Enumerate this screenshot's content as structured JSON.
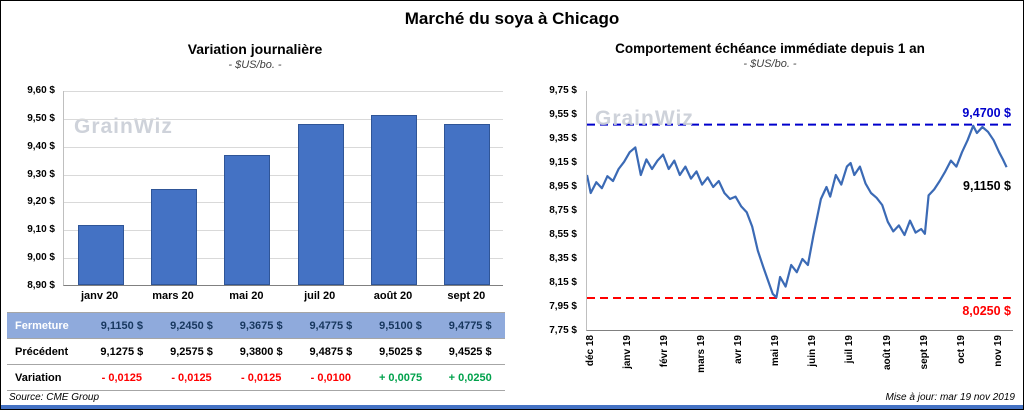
{
  "page": {
    "title": "Marché du soya à Chicago",
    "watermark": "GrainWiz",
    "footer_source": "Source: CME Group",
    "footer_updated": "Mise à jour: mar 19 nov 2019"
  },
  "colors": {
    "bar": "#4472C4",
    "line": "#3B6AB5",
    "high_line": "#0000CC",
    "low_line": "#FF0000",
    "negative": "#FF0000",
    "positive": "#00A14B",
    "fermeture_row_bg": "#8FAADC",
    "accent_bar": "#4472C4"
  },
  "chart_data": [
    {
      "type": "bar",
      "title": "Variation  journalière",
      "subtitle": "- $US/bo. -",
      "categories": [
        "janv 20",
        "mars 20",
        "mai 20",
        "juil 20",
        "août 20",
        "sept 20"
      ],
      "values": [
        9.115,
        9.245,
        9.3675,
        9.4775,
        9.51,
        9.4775
      ],
      "ylim": [
        8.9,
        9.6
      ],
      "ytick_labels": [
        "9,60 $",
        "9,50 $",
        "9,40 $",
        "9,30 $",
        "9,20 $",
        "9,10 $",
        "9,00 $",
        "8,90 $"
      ],
      "grid": true,
      "legend": false
    },
    {
      "type": "line",
      "title": "Comportement  échéance  immédiate  depuis 1 an",
      "subtitle": "- $US/bo. -",
      "x_labels": [
        "déc 18",
        "janv 19",
        "févr 19",
        "mars 19",
        "avr 19",
        "mai 19",
        "juin 19",
        "juil 19",
        "août 19",
        "sept 19",
        "oct 19",
        "nov 19"
      ],
      "ylim": [
        7.75,
        9.75
      ],
      "ytick_labels": [
        "9,75 $",
        "9,55 $",
        "9,35 $",
        "9,15 $",
        "8,95 $",
        "8,75 $",
        "8,55 $",
        "8,35 $",
        "8,15 $",
        "7,95 $",
        "7,75 $"
      ],
      "grid": false,
      "legend": false,
      "high_annotation": {
        "value": 9.47,
        "label": "9,4700 $"
      },
      "last_annotation": {
        "value": 9.115,
        "label": "9,1150 $"
      },
      "low_annotation": {
        "value": 8.025,
        "label": "8,0250 $"
      },
      "points": [
        [
          0.0,
          9.05
        ],
        [
          0.1,
          8.9
        ],
        [
          0.25,
          8.99
        ],
        [
          0.4,
          8.94
        ],
        [
          0.55,
          9.04
        ],
        [
          0.7,
          9.0
        ],
        [
          0.85,
          9.1
        ],
        [
          1.0,
          9.16
        ],
        [
          1.15,
          9.24
        ],
        [
          1.3,
          9.28
        ],
        [
          1.45,
          9.05
        ],
        [
          1.6,
          9.18
        ],
        [
          1.75,
          9.1
        ],
        [
          1.9,
          9.17
        ],
        [
          2.05,
          9.22
        ],
        [
          2.2,
          9.1
        ],
        [
          2.35,
          9.17
        ],
        [
          2.5,
          9.05
        ],
        [
          2.65,
          9.12
        ],
        [
          2.8,
          9.02
        ],
        [
          2.95,
          9.08
        ],
        [
          3.1,
          8.97
        ],
        [
          3.25,
          9.03
        ],
        [
          3.4,
          8.95
        ],
        [
          3.55,
          9.0
        ],
        [
          3.7,
          8.9
        ],
        [
          3.85,
          8.85
        ],
        [
          4.0,
          8.87
        ],
        [
          4.15,
          8.79
        ],
        [
          4.3,
          8.74
        ],
        [
          4.45,
          8.62
        ],
        [
          4.6,
          8.42
        ],
        [
          4.75,
          8.28
        ],
        [
          4.9,
          8.15
        ],
        [
          5.0,
          8.06
        ],
        [
          5.1,
          8.03
        ],
        [
          5.2,
          8.2
        ],
        [
          5.35,
          8.12
        ],
        [
          5.5,
          8.3
        ],
        [
          5.65,
          8.24
        ],
        [
          5.8,
          8.35
        ],
        [
          5.95,
          8.3
        ],
        [
          6.1,
          8.55
        ],
        [
          6.3,
          8.85
        ],
        [
          6.45,
          8.95
        ],
        [
          6.55,
          8.87
        ],
        [
          6.7,
          9.05
        ],
        [
          6.85,
          8.97
        ],
        [
          7.0,
          9.12
        ],
        [
          7.1,
          9.15
        ],
        [
          7.2,
          9.05
        ],
        [
          7.35,
          9.12
        ],
        [
          7.5,
          8.98
        ],
        [
          7.65,
          8.9
        ],
        [
          7.8,
          8.86
        ],
        [
          7.95,
          8.8
        ],
        [
          8.1,
          8.66
        ],
        [
          8.25,
          8.58
        ],
        [
          8.4,
          8.63
        ],
        [
          8.55,
          8.55
        ],
        [
          8.7,
          8.67
        ],
        [
          8.85,
          8.57
        ],
        [
          9.0,
          8.6
        ],
        [
          9.1,
          8.56
        ],
        [
          9.2,
          8.88
        ],
        [
          9.35,
          8.93
        ],
        [
          9.5,
          9.0
        ],
        [
          9.65,
          9.08
        ],
        [
          9.8,
          9.17
        ],
        [
          9.95,
          9.12
        ],
        [
          10.1,
          9.24
        ],
        [
          10.25,
          9.34
        ],
        [
          10.4,
          9.46
        ],
        [
          10.5,
          9.4
        ],
        [
          10.65,
          9.45
        ],
        [
          10.8,
          9.41
        ],
        [
          10.95,
          9.34
        ],
        [
          11.1,
          9.24
        ],
        [
          11.2,
          9.18
        ],
        [
          11.3,
          9.115
        ]
      ]
    }
  ],
  "table": {
    "rows": [
      {
        "label": "Fermeture",
        "values": [
          "9,1150  $",
          "9,2450  $",
          "9,3675  $",
          "9,4775  $",
          "9,5100  $",
          "9,4775  $"
        ]
      },
      {
        "label": "Précédent",
        "values": [
          "9,1275  $",
          "9,2575  $",
          "9,3800  $",
          "9,4875  $",
          "9,5025  $",
          "9,4525  $"
        ]
      },
      {
        "label": "Variation",
        "values": [
          "- 0,0125",
          "- 0,0125",
          "- 0,0125",
          "- 0,0100",
          "+ 0,0075",
          "+ 0,0250"
        ],
        "value_signs": [
          "neg",
          "neg",
          "neg",
          "neg",
          "pos",
          "pos"
        ]
      }
    ]
  }
}
